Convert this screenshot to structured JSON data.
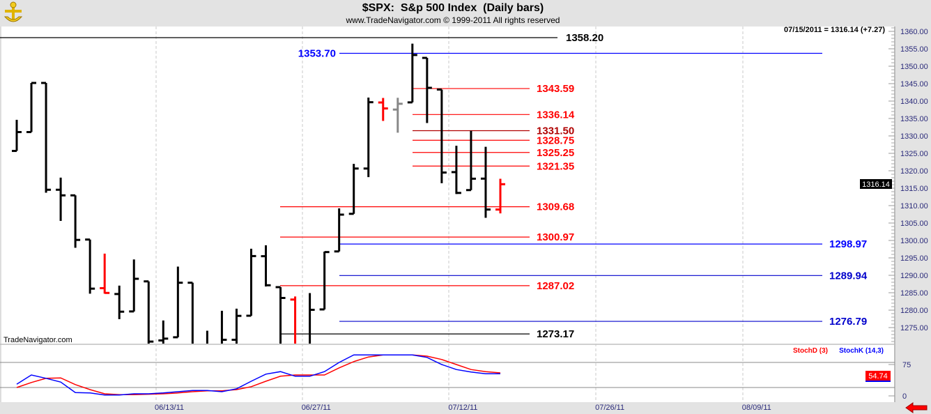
{
  "header": {
    "title": "$SPX:  S&p 500 Index  (Daily bars)",
    "subtitle": "www.TradeNavigator.com © 1999-2011 All rights reserved",
    "logo_icon": "gold-anchor-logo-icon"
  },
  "quote_readout": "07/15/2011 = 1316.14 (+7.27)",
  "watermark": "TradeNavigator.com",
  "last_price_label": "1316.14",
  "stoch_value_label": "54.74",
  "stoch_legend": {
    "d": "StochD (3)",
    "k": "StochK (14,3)"
  },
  "colors": {
    "up": "#000000",
    "down": "#ff0000",
    "neutral": "#888888",
    "stochD": "#ff0000",
    "stochK": "#0000ff",
    "panel": "#e3e3e3"
  },
  "chart_data": [
    {
      "type": "ohlc",
      "title": "$SPX:  S&p 500 Index  (Daily bars)",
      "ylim": [
        1270,
        1362
      ],
      "yticks": [
        "1360.00",
        "1355.00",
        "1350.00",
        "1345.00",
        "1340.00",
        "1335.00",
        "1330.00",
        "1325.00",
        "1320.00",
        "1315.00",
        "1310.00",
        "1305.00",
        "1300.00",
        "1295.00",
        "1290.00",
        "1285.00",
        "1280.00",
        "1275.00"
      ],
      "xticks": [
        "06/13/11",
        "06/27/11",
        "07/12/11",
        "07/26/11",
        "08/09/11"
      ],
      "grid": "vertical dashed",
      "bars": [
        {
          "d": "05/27/11",
          "o": 1325.69,
          "h": 1334.62,
          "l": 1325.69,
          "c": 1331.1,
          "col": "black"
        },
        {
          "d": "05/31/11",
          "o": 1331.1,
          "h": 1345.2,
          "l": 1331.1,
          "c": 1345.2,
          "col": "black"
        },
        {
          "d": "06/01/11",
          "o": 1345.2,
          "h": 1345.2,
          "l": 1313.71,
          "c": 1314.55,
          "col": "black"
        },
        {
          "d": "06/02/11",
          "o": 1314.55,
          "h": 1318.03,
          "l": 1305.61,
          "c": 1312.94,
          "col": "black"
        },
        {
          "d": "06/03/11",
          "o": 1312.94,
          "h": 1312.94,
          "l": 1297.9,
          "c": 1300.16,
          "col": "black"
        },
        {
          "d": "06/06/11",
          "o": 1300.26,
          "h": 1300.26,
          "l": 1284.72,
          "c": 1286.17,
          "col": "black"
        },
        {
          "d": "06/07/11",
          "o": 1286.31,
          "h": 1296.22,
          "l": 1284.74,
          "c": 1284.94,
          "col": "red"
        },
        {
          "d": "06/08/11",
          "o": 1284.63,
          "h": 1287.04,
          "l": 1277.42,
          "c": 1279.56,
          "col": "black"
        },
        {
          "d": "06/09/11",
          "o": 1279.63,
          "h": 1294.54,
          "l": 1279.63,
          "c": 1289.0,
          "col": "black"
        },
        {
          "d": "06/10/11",
          "o": 1288.26,
          "h": 1288.26,
          "l": 1268.28,
          "c": 1270.98,
          "col": "black"
        },
        {
          "d": "06/13/11",
          "o": 1271.31,
          "h": 1277.04,
          "l": 1265.64,
          "c": 1271.83,
          "col": "black"
        },
        {
          "d": "06/14/11",
          "o": 1272.22,
          "h": 1292.5,
          "l": 1272.22,
          "c": 1287.87,
          "col": "black"
        },
        {
          "d": "06/15/11",
          "o": 1287.87,
          "h": 1287.87,
          "l": 1261.9,
          "c": 1265.42,
          "col": "black"
        },
        {
          "d": "06/16/11",
          "o": 1265.53,
          "h": 1274.11,
          "l": 1258.07,
          "c": 1267.64,
          "col": "black"
        },
        {
          "d": "06/17/11",
          "o": 1268.58,
          "h": 1279.82,
          "l": 1267.4,
          "c": 1271.5,
          "col": "black"
        },
        {
          "d": "06/20/11",
          "o": 1271.5,
          "h": 1280.42,
          "l": 1267.56,
          "c": 1278.36,
          "col": "black"
        },
        {
          "d": "06/21/11",
          "o": 1278.4,
          "h": 1297.62,
          "l": 1278.4,
          "c": 1295.52,
          "col": "black"
        },
        {
          "d": "06/22/11",
          "o": 1295.48,
          "h": 1298.61,
          "l": 1286.79,
          "c": 1287.14,
          "col": "black"
        },
        {
          "d": "06/23/11",
          "o": 1286.6,
          "h": 1286.6,
          "l": 1262.87,
          "c": 1283.5,
          "col": "black"
        },
        {
          "d": "06/24/11",
          "o": 1283.04,
          "h": 1283.93,
          "l": 1267.24,
          "c": 1268.45,
          "col": "red"
        },
        {
          "d": "06/27/11",
          "o": 1268.44,
          "h": 1284.91,
          "l": 1267.53,
          "c": 1280.1,
          "col": "black"
        },
        {
          "d": "06/28/11",
          "o": 1280.21,
          "h": 1296.8,
          "l": 1280.21,
          "c": 1296.67,
          "col": "black"
        },
        {
          "d": "06/29/11",
          "o": 1296.85,
          "h": 1309.21,
          "l": 1296.85,
          "c": 1307.41,
          "col": "black"
        },
        {
          "d": "06/30/11",
          "o": 1307.64,
          "h": 1321.97,
          "l": 1307.64,
          "c": 1320.64,
          "col": "black"
        },
        {
          "d": "07/01/11",
          "o": 1320.64,
          "h": 1341.01,
          "l": 1318.18,
          "c": 1339.67,
          "col": "black"
        },
        {
          "d": "07/05/11",
          "o": 1339.59,
          "h": 1340.89,
          "l": 1334.3,
          "c": 1337.88,
          "col": "red"
        },
        {
          "d": "07/06/11",
          "o": 1337.56,
          "h": 1340.94,
          "l": 1330.92,
          "c": 1339.22,
          "col": "gray"
        },
        {
          "d": "07/07/11",
          "o": 1339.62,
          "h": 1356.48,
          "l": 1339.62,
          "c": 1353.22,
          "col": "black"
        },
        {
          "d": "07/08/11",
          "o": 1352.39,
          "h": 1352.39,
          "l": 1333.71,
          "c": 1343.8,
          "col": "black"
        },
        {
          "d": "07/11/11",
          "o": 1343.31,
          "h": 1343.31,
          "l": 1316.42,
          "c": 1319.49,
          "col": "black"
        },
        {
          "d": "07/12/11",
          "o": 1319.61,
          "h": 1327.17,
          "l": 1313.33,
          "c": 1313.64,
          "col": "black"
        },
        {
          "d": "07/13/11",
          "o": 1314.45,
          "h": 1331.48,
          "l": 1314.45,
          "c": 1317.72,
          "col": "black"
        },
        {
          "d": "07/14/11",
          "o": 1317.74,
          "h": 1326.88,
          "l": 1306.51,
          "c": 1308.87,
          "col": "black"
        },
        {
          "d": "07/15/11",
          "o": 1308.87,
          "h": 1317.7,
          "l": 1307.77,
          "c": 1316.14,
          "col": "red"
        }
      ],
      "levels": [
        {
          "value": 1358.2,
          "label": "1358.20",
          "color": "#000000"
        },
        {
          "value": 1353.7,
          "label": "1353.70",
          "color": "#0000ff"
        },
        {
          "value": 1343.59,
          "label": "1343.59",
          "color": "#ff0000"
        },
        {
          "value": 1336.14,
          "label": "1336.14",
          "color": "#ff0000"
        },
        {
          "value": 1331.5,
          "label": "1331.50",
          "color": "#b00000"
        },
        {
          "value": 1328.75,
          "label": "1328.75",
          "color": "#ff0000"
        },
        {
          "value": 1325.25,
          "label": "1325.25",
          "color": "#ff0000"
        },
        {
          "value": 1321.35,
          "label": "1321.35",
          "color": "#ff0000"
        },
        {
          "value": 1309.68,
          "label": "1309.68",
          "color": "#ff0000"
        },
        {
          "value": 1300.97,
          "label": "1300.97",
          "color": "#ff0000"
        },
        {
          "value": 1298.97,
          "label": "1298.97",
          "color": "#0000ff"
        },
        {
          "value": 1289.94,
          "label": "1289.94",
          "color": "#0000cc"
        },
        {
          "value": 1287.02,
          "label": "1287.02",
          "color": "#ff0000"
        },
        {
          "value": 1276.79,
          "label": "1276.79",
          "color": "#0000cc"
        },
        {
          "value": 1273.17,
          "label": "1273.17",
          "color": "#000000"
        }
      ]
    },
    {
      "type": "line",
      "ylim": [
        0,
        100
      ],
      "yticks": [
        "75",
        "0"
      ],
      "reference_lines": [
        80,
        20
      ],
      "series": [
        {
          "name": "StochD (3)",
          "color": "#ff0000",
          "values": [
            20,
            32,
            42,
            43,
            27,
            15,
            5,
            3,
            3,
            4,
            5,
            7,
            10,
            12,
            12,
            15,
            22,
            35,
            47,
            50,
            50,
            50,
            67,
            82,
            93,
            98,
            98,
            98,
            95,
            87,
            75,
            63,
            58,
            55
          ]
        },
        {
          "name": "StochK (14,3)",
          "color": "#0000ff",
          "values": [
            28,
            50,
            42,
            33,
            8,
            7,
            2,
            2,
            5,
            5,
            7,
            10,
            13,
            13,
            10,
            17,
            35,
            52,
            58,
            47,
            47,
            58,
            80,
            98,
            98,
            98,
            98,
            98,
            92,
            75,
            63,
            57,
            53,
            53
          ]
        }
      ]
    }
  ]
}
